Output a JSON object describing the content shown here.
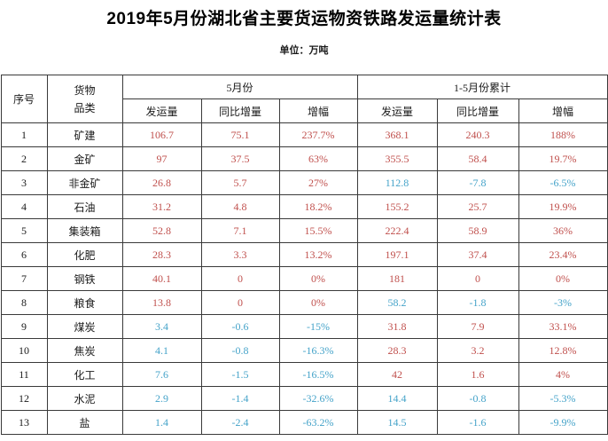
{
  "title": "2019年5月份湖北省主要货运物资铁路发运量统计表",
  "unit_label": "单位：万吨",
  "colors": {
    "positive": "#c0504d",
    "negative": "#45a3c9",
    "text": "#1a1a1a",
    "border": "#3a3a3a"
  },
  "table_headers": {
    "index": "序号",
    "category": [
      "货物",
      "品类"
    ],
    "groups": [
      {
        "label": "5月份"
      },
      {
        "label": "1-5月份累计"
      }
    ],
    "sub": [
      "发运量",
      "同比增量",
      "增幅"
    ]
  },
  "chart_data": {
    "type": "table",
    "title": "2019年5月份湖北省主要货运物资铁路发运量统计表",
    "unit": "万吨",
    "column_groups": [
      "5月份",
      "1-5月份累计"
    ],
    "sub_columns": [
      "发运量",
      "同比增量",
      "增幅"
    ],
    "rows": [
      {
        "no": "1",
        "category": "矿建",
        "may": {
          "shipment": "106.7",
          "yoy": "75.1",
          "growth": "237.7%",
          "tone": "positive"
        },
        "cumulative": {
          "shipment": "368.1",
          "yoy": "240.3",
          "growth": "188%",
          "tone": "positive"
        }
      },
      {
        "no": "2",
        "category": "金矿",
        "may": {
          "shipment": "97",
          "yoy": "37.5",
          "growth": "63%",
          "tone": "positive"
        },
        "cumulative": {
          "shipment": "355.5",
          "yoy": "58.4",
          "growth": "19.7%",
          "tone": "positive"
        }
      },
      {
        "no": "3",
        "category": "非金矿",
        "may": {
          "shipment": "26.8",
          "yoy": "5.7",
          "growth": "27%",
          "tone": "positive"
        },
        "cumulative": {
          "shipment": "112.8",
          "yoy": "-7.8",
          "growth": "-6.5%",
          "tone": "negative"
        }
      },
      {
        "no": "4",
        "category": "石油",
        "may": {
          "shipment": "31.2",
          "yoy": "4.8",
          "growth": "18.2%",
          "tone": "positive"
        },
        "cumulative": {
          "shipment": "155.2",
          "yoy": "25.7",
          "growth": "19.9%",
          "tone": "positive"
        }
      },
      {
        "no": "5",
        "category": "集装箱",
        "may": {
          "shipment": "52.8",
          "yoy": "7.1",
          "growth": "15.5%",
          "tone": "positive"
        },
        "cumulative": {
          "shipment": "222.4",
          "yoy": "58.9",
          "growth": "36%",
          "tone": "positive"
        }
      },
      {
        "no": "6",
        "category": "化肥",
        "may": {
          "shipment": "28.3",
          "yoy": "3.3",
          "growth": "13.2%",
          "tone": "positive"
        },
        "cumulative": {
          "shipment": "197.1",
          "yoy": "37.4",
          "growth": "23.4%",
          "tone": "positive"
        }
      },
      {
        "no": "7",
        "category": "钢铁",
        "may": {
          "shipment": "40.1",
          "yoy": "0",
          "growth": "0%",
          "tone": "positive"
        },
        "cumulative": {
          "shipment": "181",
          "yoy": "0",
          "growth": "0%",
          "tone": "positive"
        }
      },
      {
        "no": "8",
        "category": "粮食",
        "may": {
          "shipment": "13.8",
          "yoy": "0",
          "growth": "0%",
          "tone": "positive"
        },
        "cumulative": {
          "shipment": "58.2",
          "yoy": "-1.8",
          "growth": "-3%",
          "tone": "negative"
        }
      },
      {
        "no": "9",
        "category": "煤炭",
        "may": {
          "shipment": "3.4",
          "yoy": "-0.6",
          "growth": "-15%",
          "tone": "negative"
        },
        "cumulative": {
          "shipment": "31.8",
          "yoy": "7.9",
          "growth": "33.1%",
          "tone": "positive"
        }
      },
      {
        "no": "10",
        "category": "焦炭",
        "may": {
          "shipment": "4.1",
          "yoy": "-0.8",
          "growth": "-16.3%",
          "tone": "negative"
        },
        "cumulative": {
          "shipment": "28.3",
          "yoy": "3.2",
          "growth": "12.8%",
          "tone": "positive"
        }
      },
      {
        "no": "11",
        "category": "化工",
        "may": {
          "shipment": "7.6",
          "yoy": "-1.5",
          "growth": "-16.5%",
          "tone": "negative"
        },
        "cumulative": {
          "shipment": "42",
          "yoy": "1.6",
          "growth": "4%",
          "tone": "positive"
        }
      },
      {
        "no": "12",
        "category": "水泥",
        "may": {
          "shipment": "2.9",
          "yoy": "-1.4",
          "growth": "-32.6%",
          "tone": "negative"
        },
        "cumulative": {
          "shipment": "14.4",
          "yoy": "-0.8",
          "growth": "-5.3%",
          "tone": "negative"
        }
      },
      {
        "no": "13",
        "category": "盐",
        "may": {
          "shipment": "1.4",
          "yoy": "-2.4",
          "growth": "-63.2%",
          "tone": "negative"
        },
        "cumulative": {
          "shipment": "14.5",
          "yoy": "-1.6",
          "growth": "-9.9%",
          "tone": "negative"
        }
      }
    ]
  }
}
